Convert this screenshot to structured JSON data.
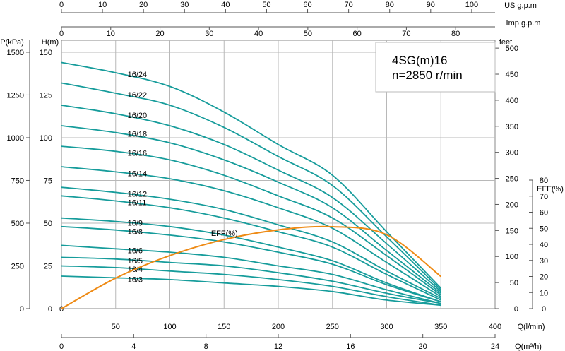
{
  "chart_data": {
    "type": "line",
    "title": "4SG(m)16",
    "subtitle": "n=2850 r/min",
    "axes": {
      "flow_lpm": {
        "label": "Q(l/min)",
        "range": [
          0,
          400
        ],
        "ticks": [
          50,
          100,
          150,
          200,
          250,
          300,
          350,
          400
        ],
        "zero_label": "0"
      },
      "flow_m3h": {
        "label": "Q(m³/h)",
        "range": [
          0,
          24
        ],
        "ticks": [
          0,
          4,
          8,
          12,
          16,
          20,
          24
        ]
      },
      "flow_usgpm": {
        "label": "US  g.p.m",
        "range": [
          0,
          105.7
        ],
        "ticks": [
          0,
          10,
          20,
          30,
          40,
          50,
          60,
          70,
          80,
          90,
          100
        ]
      },
      "flow_impgpm": {
        "label": "Imp  g.p.m",
        "range": [
          0,
          88
        ],
        "ticks": [
          0,
          10,
          20,
          30,
          40,
          50,
          60,
          70,
          80
        ]
      },
      "head_m": {
        "label": "H(m)",
        "range": [
          0,
          150
        ],
        "ticks": [
          0,
          25,
          50,
          75,
          100,
          125,
          150
        ]
      },
      "pressure_kpa": {
        "label": "P(kPa)",
        "range": [
          0,
          1500
        ],
        "ticks": [
          0,
          250,
          500,
          750,
          1000,
          1250,
          1500
        ]
      },
      "head_feet": {
        "label": "feet",
        "range": [
          0,
          500
        ],
        "ticks": [
          0,
          50,
          100,
          150,
          200,
          250,
          300,
          350,
          400,
          450,
          500
        ]
      },
      "efficiency": {
        "label": "EFF(%)",
        "range": [
          0,
          80
        ],
        "ticks": [
          0,
          10,
          20,
          30,
          40,
          50,
          60,
          70,
          80
        ]
      }
    },
    "grid": true,
    "curve_color": "#169c9b",
    "eff_color": "#ee8a14",
    "x_flow_lpm": [
      0,
      50,
      100,
      150,
      200,
      250,
      300,
      350
    ],
    "series": [
      {
        "name": "16/24",
        "head_m": [
          144,
          138,
          130,
          115,
          96,
          78,
          45,
          12
        ]
      },
      {
        "name": "16/22",
        "head_m": [
          132,
          126,
          119,
          106,
          89,
          72,
          42,
          11
        ]
      },
      {
        "name": "16/20",
        "head_m": [
          119,
          114,
          107,
          96,
          81,
          65,
          38,
          10
        ]
      },
      {
        "name": "16/18",
        "head_m": [
          107,
          103,
          97,
          87,
          74,
          59,
          34,
          9
        ]
      },
      {
        "name": "16/16",
        "head_m": [
          95,
          92,
          87,
          78,
          66,
          53,
          31,
          8
        ]
      },
      {
        "name": "16/14",
        "head_m": [
          83,
          80,
          76,
          69,
          59,
          47,
          27,
          7
        ]
      },
      {
        "name": "16/12",
        "head_m": [
          71,
          68,
          64,
          58,
          49,
          39,
          22,
          6
        ]
      },
      {
        "name": "16/11",
        "head_m": [
          66,
          63,
          59,
          53,
          45,
          36,
          20,
          5
        ]
      },
      {
        "name": "16/9",
        "head_m": [
          53,
          51,
          48,
          43,
          36,
          28,
          15,
          4
        ]
      },
      {
        "name": "16/8",
        "head_m": [
          48,
          46,
          43,
          39,
          33,
          26,
          14,
          4
        ]
      },
      {
        "name": "16/6",
        "head_m": [
          37,
          35,
          33,
          30,
          25,
          20,
          11,
          3
        ]
      },
      {
        "name": "16/5",
        "head_m": [
          30,
          29,
          27,
          25,
          21,
          16,
          9,
          3
        ]
      },
      {
        "name": "16/4",
        "head_m": [
          25,
          24,
          22,
          20,
          17,
          13,
          7,
          2
        ]
      },
      {
        "name": "16/3",
        "head_m": [
          19,
          18,
          17,
          15,
          13,
          10,
          5,
          2
        ]
      }
    ],
    "efficiency_curve": {
      "name": "EFF(%)",
      "x_flow_lpm": [
        0,
        50,
        100,
        150,
        200,
        250,
        300,
        350
      ],
      "eff_pct": [
        0,
        19,
        33,
        43,
        49,
        51,
        46,
        20
      ]
    }
  }
}
